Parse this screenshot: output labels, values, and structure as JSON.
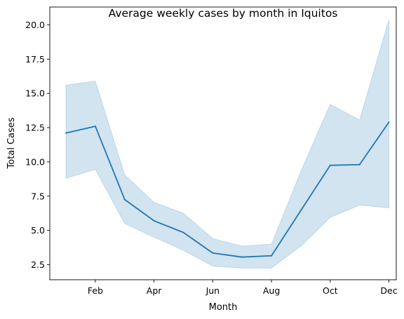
{
  "chart_data": {
    "type": "line",
    "title": "Average weekly cases by month in Iquitos",
    "xlabel": "Month",
    "ylabel": "Total Cases",
    "x": [
      1,
      2,
      3,
      4,
      5,
      6,
      7,
      8,
      9,
      10,
      11,
      12
    ],
    "x_ticks": [
      {
        "x": 2,
        "label": "Feb"
      },
      {
        "x": 4,
        "label": "Apr"
      },
      {
        "x": 6,
        "label": "Jun"
      },
      {
        "x": 8,
        "label": "Aug"
      },
      {
        "x": 10,
        "label": "Oct"
      },
      {
        "x": 12,
        "label": "Dec"
      }
    ],
    "xlim": [
      0.45,
      12.25
    ],
    "ylim": [
      1.4,
      21.3
    ],
    "y_ticks": [
      "2.5",
      "5.0",
      "7.5",
      "10.0",
      "12.5",
      "15.0",
      "17.5",
      "20.0"
    ],
    "grid": false,
    "series": [
      {
        "values": [
          12.1,
          12.6,
          7.25,
          5.7,
          4.85,
          3.35,
          3.05,
          3.15,
          6.45,
          9.75,
          9.8,
          12.9
        ],
        "ci_lower": [
          8.8,
          9.45,
          5.5,
          4.5,
          3.55,
          2.4,
          2.25,
          2.25,
          3.85,
          5.95,
          6.85,
          6.65
        ],
        "ci_upper": [
          15.6,
          15.9,
          9.05,
          7.05,
          6.25,
          4.4,
          3.85,
          4.0,
          9.3,
          14.2,
          13.05,
          20.4
        ],
        "color": "#1f77b4",
        "band_color": "#1f77b4"
      }
    ]
  }
}
